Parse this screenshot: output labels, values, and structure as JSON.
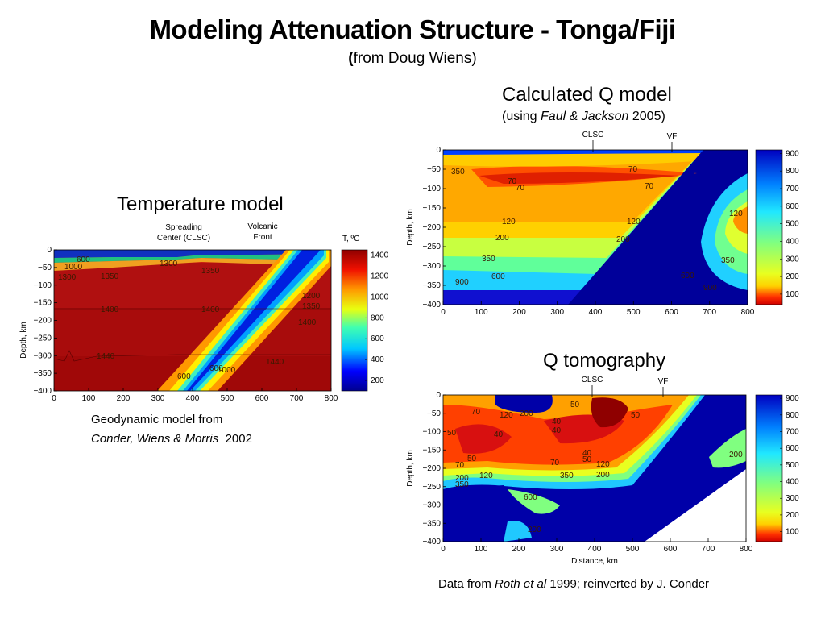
{
  "slide": {
    "title": "Modeling Attenuation Structure - Tonga/Fiji",
    "subtitle_paren_open": "(",
    "subtitle_text": "from Doug Wiens)"
  },
  "panels": {
    "temperature": {
      "heading": "Temperature model",
      "credit_line1": "Geodynamic model from",
      "credit_authors": "Conder, Wiens & Morris",
      "credit_year": "2002",
      "marker_spreading": "Spreading\nCenter (CLSC)",
      "marker_spreading_l1": "Spreading",
      "marker_spreading_l2": "Center (CLSC)",
      "marker_volcanic_l1": "Volcanic",
      "marker_volcanic_l2": "Front",
      "colorbar_title": "T, ºC"
    },
    "calculated_q": {
      "heading": "Calculated Q model",
      "sub_open": "(using ",
      "sub_italic": "Faul & Jackson",
      "sub_close": " 2005)",
      "marker_clsc": "CLSC",
      "marker_vf": "VF"
    },
    "q_tomography": {
      "heading": "Q tomography",
      "marker_clsc": "CLSC",
      "marker_vf": "VF",
      "credit_pre": "Data from ",
      "credit_italic": "Roth et al",
      "credit_post": " 1999; reinverted by J. Conder"
    }
  },
  "chart_data": [
    {
      "type": "heatmap",
      "title": "Temperature model",
      "xlabel": "",
      "ylabel": "Depth, km",
      "xlim": [
        0,
        800
      ],
      "ylim": [
        -400,
        0
      ],
      "x_ticks": [
        0,
        100,
        200,
        300,
        400,
        500,
        600,
        700,
        800
      ],
      "y_ticks": [
        0,
        -50,
        -100,
        -150,
        -200,
        -250,
        -300,
        -350,
        -400
      ],
      "colorbar": {
        "label": "T, ºC",
        "ticks": [
          200,
          400,
          600,
          800,
          1000,
          1200,
          1400
        ],
        "range": [
          100,
          1450
        ]
      },
      "contour_labels": [
        "600",
        "1000",
        "1300",
        "1350",
        "1400",
        "1400",
        "1440",
        "1440",
        "1300",
        "1350",
        "1400",
        "1200",
        "1000",
        "600",
        "600",
        "1000"
      ],
      "annotations": [
        "Spreading Center (CLSC)",
        "Volcanic Front"
      ]
    },
    {
      "type": "heatmap",
      "title": "Calculated Q model",
      "xlabel": "",
      "ylabel": "Depth, km",
      "xlim": [
        0,
        800
      ],
      "ylim": [
        -400,
        0
      ],
      "x_ticks": [
        0,
        100,
        200,
        300,
        400,
        500,
        600,
        700,
        800
      ],
      "y_ticks": [
        0,
        -50,
        -100,
        -150,
        -200,
        -250,
        -300,
        -350,
        -400
      ],
      "colorbar": {
        "ticks": [
          100,
          200,
          300,
          400,
          500,
          600,
          700,
          800,
          900
        ],
        "range": [
          40,
          920
        ]
      },
      "contour_labels": [
        "350",
        "70",
        "70",
        "120",
        "200",
        "350",
        "600",
        "900",
        "120",
        "200",
        "350",
        "120",
        "70",
        "70",
        "120",
        "200",
        "600",
        "120",
        "350",
        "600",
        "900"
      ],
      "annotations": [
        "CLSC",
        "VF"
      ]
    },
    {
      "type": "heatmap",
      "title": "Q tomography",
      "xlabel": "Distance, km",
      "ylabel": "Depth, km",
      "xlim": [
        0,
        800
      ],
      "ylim": [
        -400,
        0
      ],
      "x_ticks": [
        0,
        100,
        200,
        300,
        400,
        500,
        600,
        700,
        800
      ],
      "y_ticks": [
        0,
        -50,
        -100,
        -150,
        -200,
        -250,
        -300,
        -350,
        -400
      ],
      "colorbar": {
        "ticks": [
          100,
          200,
          300,
          400,
          500,
          600,
          700,
          800,
          900
        ],
        "range": [
          40,
          920
        ]
      },
      "contour_labels": [
        "70",
        "120",
        "200",
        "40",
        "50",
        "50",
        "40",
        "40",
        "70",
        "50",
        "120",
        "200",
        "350",
        "600",
        "200",
        "120",
        "200",
        "350",
        "70",
        "50",
        "40",
        "600",
        "200"
      ],
      "annotations": [
        "CLSC",
        "VF"
      ]
    }
  ]
}
